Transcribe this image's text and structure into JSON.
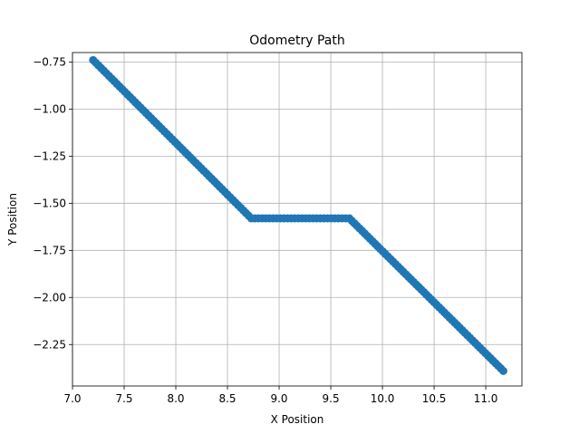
{
  "chart_data": {
    "type": "line",
    "title": "Odometry Path",
    "xlabel": "X Position",
    "ylabel": "Y Position",
    "xlim": [
      7.0,
      11.35
    ],
    "ylim": [
      -2.47,
      -0.7
    ],
    "grid": true,
    "line_color": "#1f77b4",
    "xticks": [
      7.0,
      7.5,
      8.0,
      8.5,
      9.0,
      9.5,
      10.0,
      10.5,
      11.0
    ],
    "xtick_labels": [
      "7.0",
      "7.5",
      "8.0",
      "8.5",
      "9.0",
      "9.5",
      "10.0",
      "10.5",
      "11.0"
    ],
    "yticks": [
      -0.75,
      -1.0,
      -1.25,
      -1.5,
      -1.75,
      -2.0,
      -2.25
    ],
    "ytick_labels": [
      "−0.75",
      "−1.00",
      "−1.25",
      "−1.50",
      "−1.75",
      "−2.00",
      "−2.25"
    ],
    "series": [
      {
        "segments": [
          {
            "x0": 7.2,
            "y0": -0.74,
            "x1": 8.73,
            "y1": -1.58,
            "n": 61
          },
          {
            "x0": 8.73,
            "y0": -1.58,
            "x1": 9.68,
            "y1": -1.58,
            "n": 28
          },
          {
            "x0": 9.68,
            "y0": -1.58,
            "x1": 11.17,
            "y1": -2.39,
            "n": 61
          }
        ]
      }
    ]
  }
}
